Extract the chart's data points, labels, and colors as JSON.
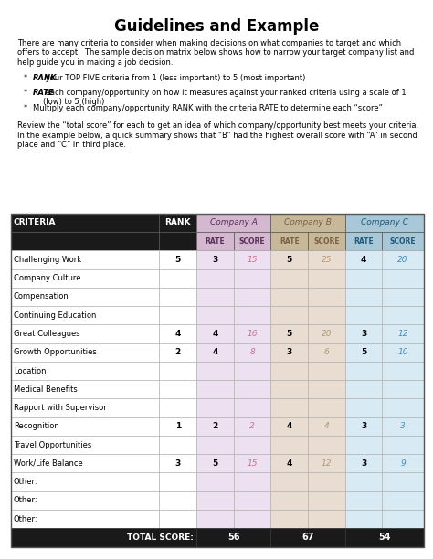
{
  "title": "Guidelines and Example",
  "intro_text": "There are many criteria to consider when making decisions on what companies to target and which\noffers to accept.  The sample decision matrix below shows how to narrow your target company list and\nhelp guide you in making a job decision.",
  "bullets_italic": [
    "RANK",
    "RATE",
    ""
  ],
  "bullets_rest": [
    " your TOP FIVE criteria from 1 (less important) to 5 (most important)",
    " each company/opportunity on how it measures against your ranked criteria using a scale of 1\n(low) to 5 (high)",
    "Multiply each company/opportunity RANK with the criteria RATE to determine each “score”"
  ],
  "review_text": "Review the “total score” for each to get an idea of which company/opportunity best meets your criteria.\nIn the example below, a quick summary shows that “B” had the highest overall score with “A” in second\nplace and “C” in third place.",
  "rows": [
    {
      "criteria": "Challenging Work",
      "rank": "5",
      "a_rate": "3",
      "a_score": "15",
      "b_rate": "5",
      "b_score": "25",
      "c_rate": "4",
      "c_score": "20"
    },
    {
      "criteria": "Company Culture",
      "rank": "",
      "a_rate": "",
      "a_score": "",
      "b_rate": "",
      "b_score": "",
      "c_rate": "",
      "c_score": ""
    },
    {
      "criteria": "Compensation",
      "rank": "",
      "a_rate": "",
      "a_score": "",
      "b_rate": "",
      "b_score": "",
      "c_rate": "",
      "c_score": ""
    },
    {
      "criteria": "Continuing Education",
      "rank": "",
      "a_rate": "",
      "a_score": "",
      "b_rate": "",
      "b_score": "",
      "c_rate": "",
      "c_score": ""
    },
    {
      "criteria": "Great Colleagues",
      "rank": "4",
      "a_rate": "4",
      "a_score": "16",
      "b_rate": "5",
      "b_score": "20",
      "c_rate": "3",
      "c_score": "12"
    },
    {
      "criteria": "Growth Opportunities",
      "rank": "2",
      "a_rate": "4",
      "a_score": "8",
      "b_rate": "3",
      "b_score": "6",
      "c_rate": "5",
      "c_score": "10"
    },
    {
      "criteria": "Location",
      "rank": "",
      "a_rate": "",
      "a_score": "",
      "b_rate": "",
      "b_score": "",
      "c_rate": "",
      "c_score": ""
    },
    {
      "criteria": "Medical Benefits",
      "rank": "",
      "a_rate": "",
      "a_score": "",
      "b_rate": "",
      "b_score": "",
      "c_rate": "",
      "c_score": ""
    },
    {
      "criteria": "Rapport with Supervisor",
      "rank": "",
      "a_rate": "",
      "a_score": "",
      "b_rate": "",
      "b_score": "",
      "c_rate": "",
      "c_score": ""
    },
    {
      "criteria": "Recognition",
      "rank": "1",
      "a_rate": "2",
      "a_score": "2",
      "b_rate": "4",
      "b_score": "4",
      "c_rate": "3",
      "c_score": "3"
    },
    {
      "criteria": "Travel Opportunities",
      "rank": "",
      "a_rate": "",
      "a_score": "",
      "b_rate": "",
      "b_score": "",
      "c_rate": "",
      "c_score": ""
    },
    {
      "criteria": "Work/Life Balance",
      "rank": "3",
      "a_rate": "5",
      "a_score": "15",
      "b_rate": "4",
      "b_score": "12",
      "c_rate": "3",
      "c_score": "9"
    },
    {
      "criteria": "Other:",
      "rank": "",
      "a_rate": "",
      "a_score": "",
      "b_rate": "",
      "b_score": "",
      "c_rate": "",
      "c_score": ""
    },
    {
      "criteria": "Other:",
      "rank": "",
      "a_rate": "",
      "a_score": "",
      "b_rate": "",
      "b_score": "",
      "c_rate": "",
      "c_score": ""
    },
    {
      "criteria": "Other:",
      "rank": "",
      "a_rate": "",
      "a_score": "",
      "b_rate": "",
      "b_score": "",
      "c_rate": "",
      "c_score": ""
    }
  ],
  "totals": [
    "56",
    "67",
    "54"
  ],
  "bg_color": "#ffffff",
  "header_bg": "#1a1a1a",
  "header_text": "#ffffff",
  "col_a_header_bg": "#d4b8d0",
  "col_b_header_bg": "#c8b89a",
  "col_c_header_bg": "#a8c8d8",
  "col_a_data_bg": "#ede0f0",
  "col_b_data_bg": "#e8ddd0",
  "col_c_data_bg": "#d8eaf4",
  "a_score_color": "#c87090",
  "b_score_color": "#b09878",
  "c_score_color": "#4090b8",
  "total_row_bg": "#1a1a1a",
  "total_row_text": "#ffffff",
  "col_a_label_color": "#5a2d5a",
  "col_b_label_color": "#7a6040",
  "col_c_label_color": "#205878"
}
